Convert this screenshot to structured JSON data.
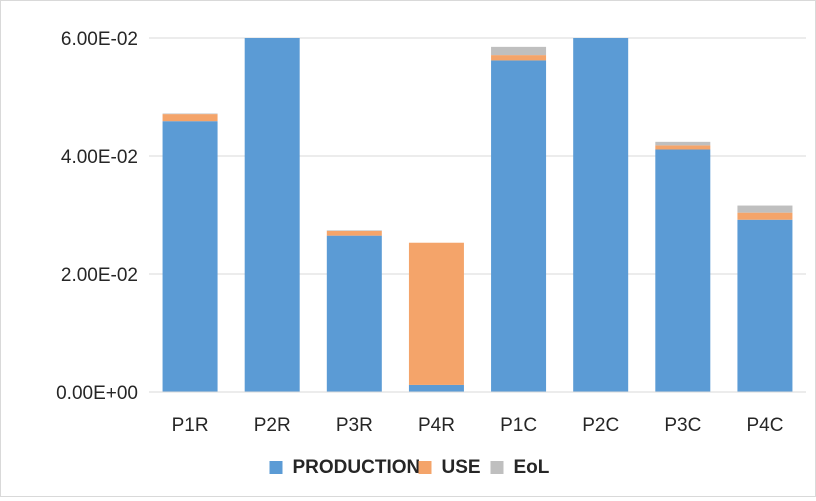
{
  "chart_data": {
    "type": "bar",
    "stacked": true,
    "categories": [
      "P1R",
      "P2R",
      "P3R",
      "P4R",
      "P1C",
      "P2C",
      "P3C",
      "P4C"
    ],
    "series": [
      {
        "name": "PRODUCTION",
        "color": "#5b9bd5",
        "values": [
          0.0459,
          0.06,
          0.0265,
          0.0012,
          0.0562,
          0.06,
          0.0411,
          0.0292
        ]
      },
      {
        "name": "USE",
        "color": "#f4a46a",
        "values": [
          0.0012,
          0.0,
          0.0008,
          0.0241,
          0.0009,
          0.0,
          0.0007,
          0.0012
        ]
      },
      {
        "name": "EoL",
        "color": "#bfbfbf",
        "values": [
          0.0001,
          0.0,
          0.0001,
          0.0,
          0.0014,
          0.0,
          0.0006,
          0.0012
        ]
      }
    ],
    "yticks": [
      "0.00E+00",
      "2.00E-02",
      "4.00E-02",
      "6.00E-02"
    ],
    "ytick_values": [
      0,
      0.02,
      0.04,
      0.06
    ],
    "ylim": [
      0,
      0.06
    ],
    "grid": true,
    "legend_position": "bottom",
    "title": "",
    "xlabel": "",
    "ylabel": ""
  }
}
